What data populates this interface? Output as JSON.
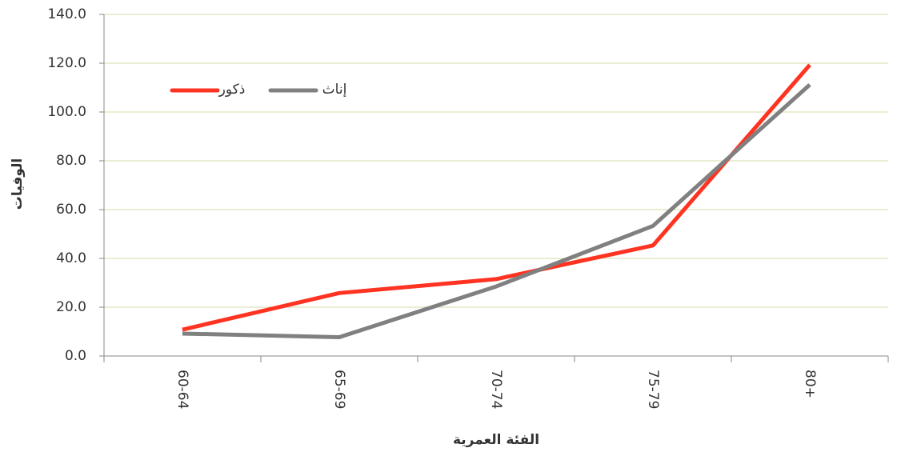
{
  "chart_data": {
    "type": "line",
    "y_label": "الوفيات",
    "x_label": "الفئة العمرية",
    "categories": [
      "60-64",
      "65-69",
      "70-74",
      "75-79",
      "80+"
    ],
    "series": [
      {
        "name": "ذكور",
        "color": "#ff3322",
        "values": [
          10.8,
          25.8,
          31.5,
          45.3,
          119.3
        ]
      },
      {
        "name": "إناث",
        "color": "#808080",
        "values": [
          9.2,
          7.7,
          28.5,
          53.3,
          111.2
        ]
      }
    ],
    "ylim": [
      0,
      140
    ],
    "yticks": [
      {
        "value": 0,
        "label": "0.0"
      },
      {
        "value": 20,
        "label": "20.0"
      },
      {
        "value": 40,
        "label": "40.0"
      },
      {
        "value": 60,
        "label": "60.0"
      },
      {
        "value": 80,
        "label": "80.0"
      },
      {
        "value": 100,
        "label": "100.0"
      },
      {
        "value": 120,
        "label": "120.0"
      },
      {
        "value": 140,
        "label": "140.0"
      }
    ],
    "grid": true
  }
}
